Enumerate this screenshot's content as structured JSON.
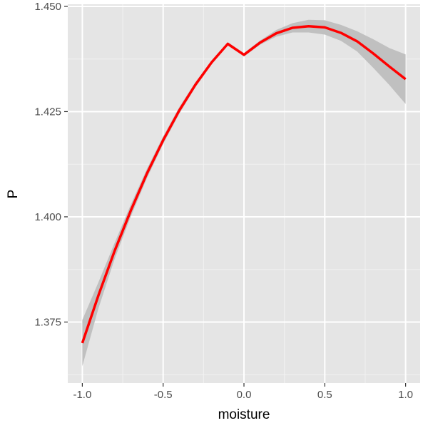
{
  "chart_data": {
    "type": "line",
    "title": "",
    "xlabel": "moisture",
    "ylabel": "P",
    "xlim": [
      -1.09,
      1.09
    ],
    "ylim": [
      1.3605,
      1.4505
    ],
    "grid": true,
    "legend": "none",
    "x_ticks": [
      -1.0,
      -0.5,
      0.0,
      0.5,
      1.0
    ],
    "x_tick_labels": [
      "-1.0",
      "-0.5",
      "0.0",
      "0.5",
      "1.0"
    ],
    "y_ticks": [
      1.375,
      1.4,
      1.425,
      1.45
    ],
    "y_tick_labels": [
      "1.375",
      "1.400",
      "1.425",
      "1.450"
    ],
    "series": [
      {
        "type": "line",
        "color": "#ff0000",
        "x": [
          -1.0,
          -0.9,
          -0.8,
          -0.7,
          -0.6,
          -0.5,
          -0.4,
          -0.3,
          -0.2,
          -0.1,
          0.0,
          0.1,
          0.2,
          0.3,
          0.4,
          0.5,
          0.6,
          0.7,
          0.8,
          0.9,
          1.0
        ],
        "y": [
          1.37,
          1.3814,
          1.3919,
          1.4015,
          1.4103,
          1.4182,
          1.4253,
          1.4314,
          1.4367,
          1.4411,
          1.4385,
          1.4414,
          1.4436,
          1.4449,
          1.4453,
          1.445,
          1.4437,
          1.4417,
          1.4388,
          1.4357,
          1.4327
        ]
      }
    ],
    "ribbon": {
      "color": "#c0c0c0",
      "x": [
        -1.0,
        -0.9,
        -0.8,
        -0.7,
        -0.6,
        -0.5,
        -0.4,
        -0.3,
        -0.2,
        -0.1,
        0.0,
        0.1,
        0.2,
        0.3,
        0.4,
        0.5,
        0.6,
        0.7,
        0.8,
        0.9,
        1.0
      ],
      "lower": [
        1.3645,
        1.3783,
        1.39,
        1.4001,
        1.4092,
        1.4173,
        1.4245,
        1.4308,
        1.4362,
        1.4407,
        1.4381,
        1.4409,
        1.4428,
        1.4438,
        1.4438,
        1.4433,
        1.4418,
        1.4393,
        1.4354,
        1.4313,
        1.4268
      ],
      "upper": [
        1.3755,
        1.3845,
        1.3938,
        1.4029,
        1.4114,
        1.4191,
        1.4261,
        1.432,
        1.4372,
        1.4415,
        1.4389,
        1.4419,
        1.4444,
        1.446,
        1.4468,
        1.4467,
        1.4456,
        1.4441,
        1.4422,
        1.4401,
        1.4386
      ]
    }
  }
}
